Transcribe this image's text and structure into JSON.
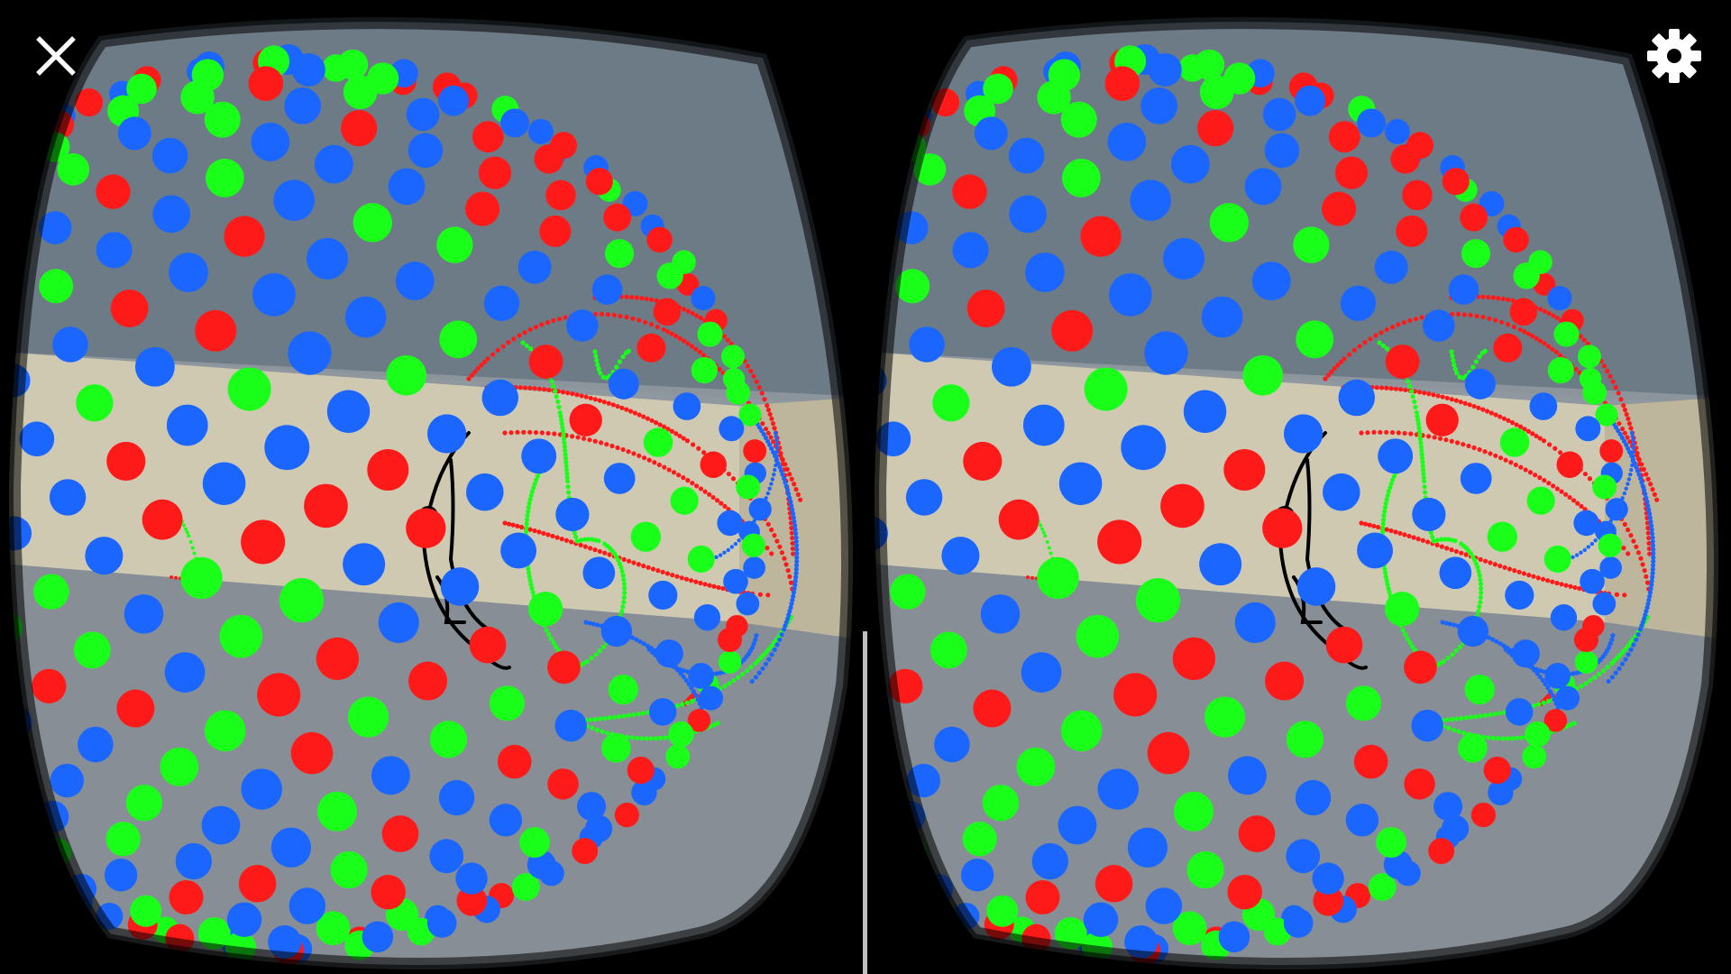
{
  "app": {
    "mode": "stereo-vr-viewer",
    "controls": {
      "close": {
        "icon": "close-icon"
      },
      "settings": {
        "icon": "gear-icon"
      }
    }
  },
  "scene": {
    "colors": {
      "ceiling": "#6d7b86",
      "floor": "#8f979e",
      "wall": "#cfc9b2",
      "ball_red": "#ff1a1a",
      "ball_green": "#1aff1a",
      "ball_blue": "#1a66ff",
      "sketch_black": "#000000",
      "vignette": "#000000"
    },
    "elements": [
      "sphere-of-balls",
      "red-sketch-lines",
      "green-sketch-lines",
      "blue-sketch-lines",
      "black-sketch-figure"
    ]
  }
}
